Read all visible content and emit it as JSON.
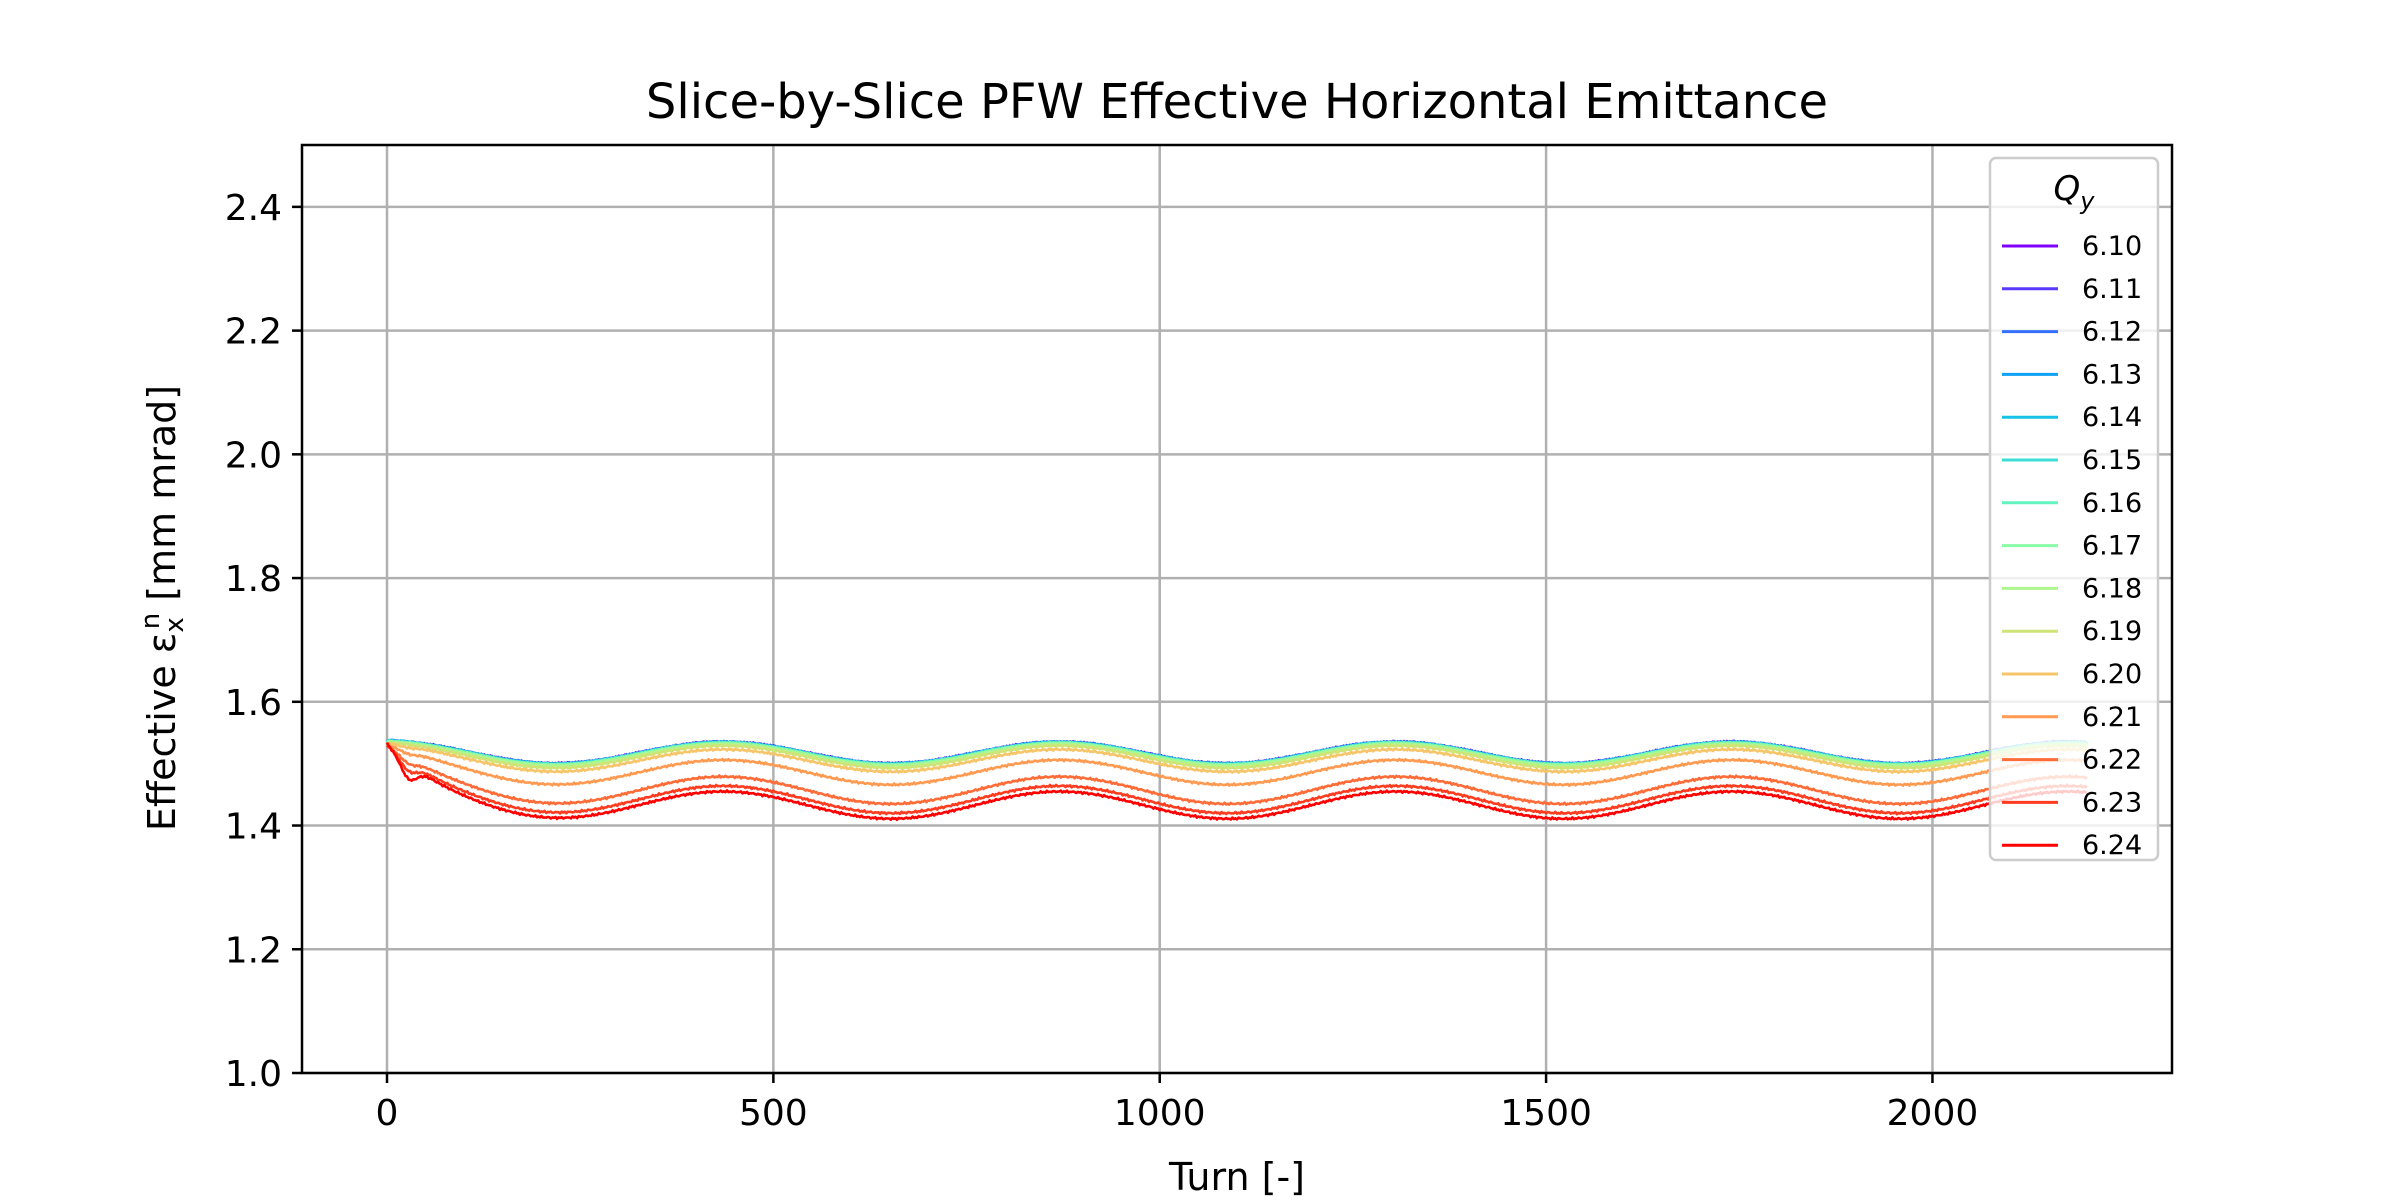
{
  "chart_data": {
    "type": "line",
    "title": "Slice-by-Slice PFW Effective Horizontal Emittance",
    "xlabel": "Turn [-]",
    "ylabel": {
      "prefix": "Effective ε",
      "sub": "x",
      "sup": "n",
      "suffix": " [mm mrad]"
    },
    "xlim": [
      -110,
      2310
    ],
    "ylim": [
      1.0,
      2.5
    ],
    "xticks": [
      0,
      500,
      1000,
      1500,
      2000
    ],
    "yticks": [
      1.0,
      1.2,
      1.4,
      1.6,
      1.8,
      2.0,
      2.2,
      2.4
    ],
    "ytick_labels": [
      "1.0",
      "1.2",
      "1.4",
      "1.6",
      "1.8",
      "2.0",
      "2.2",
      "2.4"
    ],
    "grid": true,
    "legend": {
      "title": "Q",
      "title_sub": "y",
      "placement": "top-right"
    },
    "x_max": 2200,
    "oscillation_period_turns": 435,
    "series": [
      {
        "name": "6.10",
        "color": "#8000ff",
        "start": 1.537,
        "mean": 1.5175,
        "amplitude": 0.0175,
        "dip": 0.0
      },
      {
        "name": "6.11",
        "color": "#5a3afe",
        "start": 1.537,
        "mean": 1.5175,
        "amplitude": 0.0175,
        "dip": 0.0
      },
      {
        "name": "6.12",
        "color": "#3470fd",
        "start": 1.537,
        "mean": 1.5175,
        "amplitude": 0.0175,
        "dip": 0.0
      },
      {
        "name": "6.13",
        "color": "#0ea1f5",
        "start": 1.537,
        "mean": 1.517,
        "amplitude": 0.0175,
        "dip": 0.0
      },
      {
        "name": "6.14",
        "color": "#17c2e8",
        "start": 1.537,
        "mean": 1.517,
        "amplitude": 0.0175,
        "dip": 0.0
      },
      {
        "name": "6.15",
        "color": "#3ddcd4",
        "start": 1.537,
        "mean": 1.5165,
        "amplitude": 0.0175,
        "dip": 0.0
      },
      {
        "name": "6.16",
        "color": "#62f3bf",
        "start": 1.536,
        "mean": 1.516,
        "amplitude": 0.0175,
        "dip": 0.0
      },
      {
        "name": "6.17",
        "color": "#88fca7",
        "start": 1.536,
        "mean": 1.5155,
        "amplitude": 0.0175,
        "dip": 0.0
      },
      {
        "name": "6.18",
        "color": "#aef78f",
        "start": 1.535,
        "mean": 1.514,
        "amplitude": 0.0175,
        "dip": 0.0
      },
      {
        "name": "6.19",
        "color": "#cfe476",
        "start": 1.534,
        "mean": 1.511,
        "amplitude": 0.018,
        "dip": 0.0
      },
      {
        "name": "6.20",
        "color": "#f6c56a",
        "start": 1.533,
        "mean": 1.505,
        "amplitude": 0.018,
        "dip": 0.002
      },
      {
        "name": "6.21",
        "color": "#ff9a50",
        "start": 1.531,
        "mean": 1.486,
        "amplitude": 0.02,
        "dip": 0.004
      },
      {
        "name": "6.22",
        "color": "#ff6c38",
        "start": 1.53,
        "mean": 1.457,
        "amplitude": 0.022,
        "dip": 0.008
      },
      {
        "name": "6.23",
        "color": "#ff3c1f",
        "start": 1.53,
        "mean": 1.442,
        "amplitude": 0.022,
        "dip": 0.014
      },
      {
        "name": "6.24",
        "color": "#ff0000",
        "start": 1.533,
        "mean": 1.433,
        "amplitude": 0.022,
        "dip": 0.025
      }
    ]
  }
}
